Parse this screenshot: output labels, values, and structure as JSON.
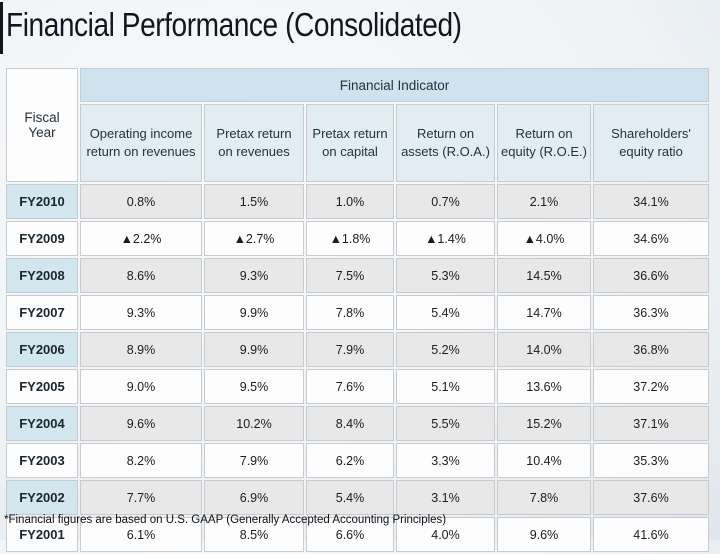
{
  "page": {
    "title": "Financial Performance (Consolidated)",
    "footnote": "*Financial figures are based on U.S. GAAP (Generally Accepted Accounting Principles)"
  },
  "table": {
    "corner_label": "Fiscal Year",
    "group_header": "Financial Indicator",
    "columns": [
      "Operating income return on revenues",
      "Pretax return on revenues",
      "Pretax return on capital",
      "Return on assets (R.O.A.)",
      "Return on equity (R.O.E.)",
      "Shareholders' equity ratio"
    ],
    "rows": [
      {
        "year": "FY2010",
        "values": [
          "0.8%",
          "1.5%",
          "1.0%",
          "0.7%",
          "2.1%",
          "34.1%"
        ]
      },
      {
        "year": "FY2009",
        "values": [
          "▲2.2%",
          "▲2.7%",
          "▲1.8%",
          "▲1.4%",
          "▲4.0%",
          "34.6%"
        ]
      },
      {
        "year": "FY2008",
        "values": [
          "8.6%",
          "9.3%",
          "7.5%",
          "5.3%",
          "14.5%",
          "36.6%"
        ]
      },
      {
        "year": "FY2007",
        "values": [
          "9.3%",
          "9.9%",
          "7.8%",
          "5.4%",
          "14.7%",
          "36.3%"
        ]
      },
      {
        "year": "FY2006",
        "values": [
          "8.9%",
          "9.9%",
          "7.9%",
          "5.2%",
          "14.0%",
          "36.8%"
        ]
      },
      {
        "year": "FY2005",
        "values": [
          "9.0%",
          "9.5%",
          "7.6%",
          "5.1%",
          "13.6%",
          "37.2%"
        ]
      },
      {
        "year": "FY2004",
        "values": [
          "9.6%",
          "10.2%",
          "8.4%",
          "5.5%",
          "15.2%",
          "37.1%"
        ]
      },
      {
        "year": "FY2003",
        "values": [
          "8.2%",
          "7.9%",
          "6.2%",
          "3.3%",
          "10.4%",
          "35.3%"
        ]
      },
      {
        "year": "FY2002",
        "values": [
          "7.7%",
          "6.9%",
          "5.4%",
          "3.1%",
          "7.8%",
          "37.6%"
        ]
      },
      {
        "year": "FY2001",
        "values": [
          "6.1%",
          "8.5%",
          "6.6%",
          "4.0%",
          "9.6%",
          "41.6%"
        ]
      }
    ]
  },
  "colors": {
    "group_header_bg": "#cfe3ee",
    "subheader_bg": "#e2edf3",
    "year_highlight_bg": "#d2e6f0",
    "row_alt_bg": "#e8e8e8",
    "row_bg": "#fdfdfd",
    "cell_border": "#c5cbd0",
    "title_accent": "#14141a"
  }
}
